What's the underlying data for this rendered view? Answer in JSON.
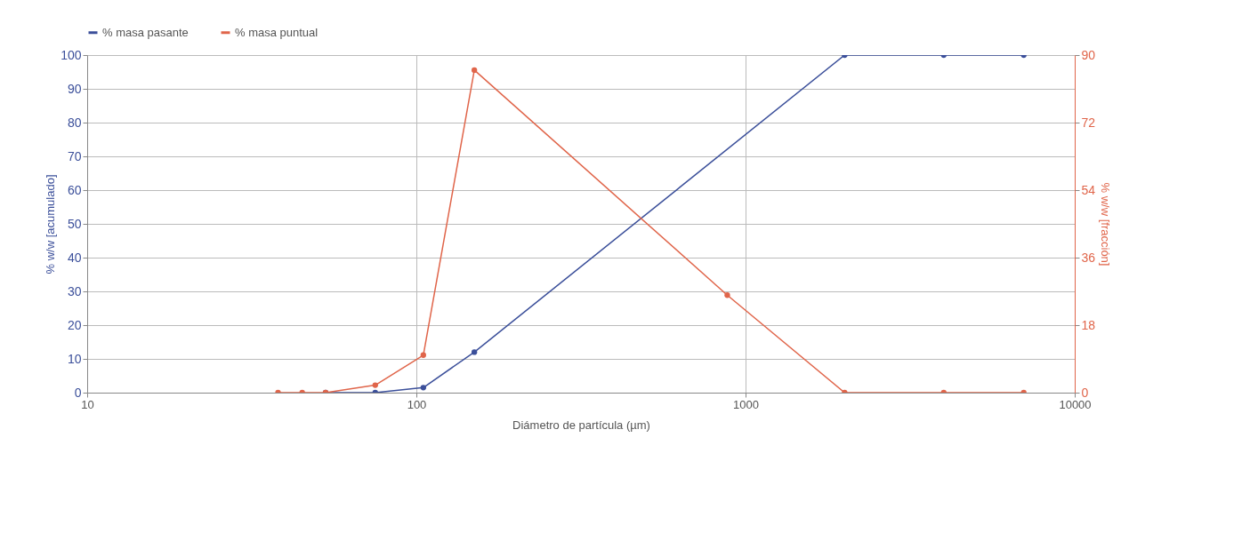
{
  "chart_data": {
    "type": "line",
    "xlabel": "Diámetro de partícula (µm)",
    "ylabel": "% w/w [acumulado]",
    "y2label": "% w/w [fracción]",
    "log": "x",
    "xlim": [
      10,
      10000
    ],
    "xticks": [
      10,
      100,
      1000,
      10000
    ],
    "ylim": [
      0,
      100
    ],
    "yticks": [
      0,
      10,
      20,
      30,
      40,
      50,
      60,
      70,
      80,
      90,
      100
    ],
    "y2lim": [
      0,
      90
    ],
    "y2ticks": [
      0,
      18,
      36,
      54,
      72,
      90
    ],
    "grid": true,
    "legend": "top",
    "marker": "circle",
    "line_style": "solid",
    "series": [
      {
        "name": "% masa pasante",
        "color": "#3b4f9a",
        "x": [
          53,
          75,
          105,
          150,
          2000,
          4000,
          7000
        ],
        "values": [
          0,
          0,
          1.5,
          12,
          100,
          100,
          100
        ]
      },
      {
        "name": "% masa puntual",
        "color": "#e0654a",
        "axis": "y2",
        "x": [
          38,
          45,
          53,
          75,
          105,
          150,
          880,
          2000,
          4000,
          7000
        ],
        "values": [
          0,
          0,
          0,
          2,
          10,
          86,
          26,
          0,
          0,
          0
        ]
      }
    ]
  }
}
